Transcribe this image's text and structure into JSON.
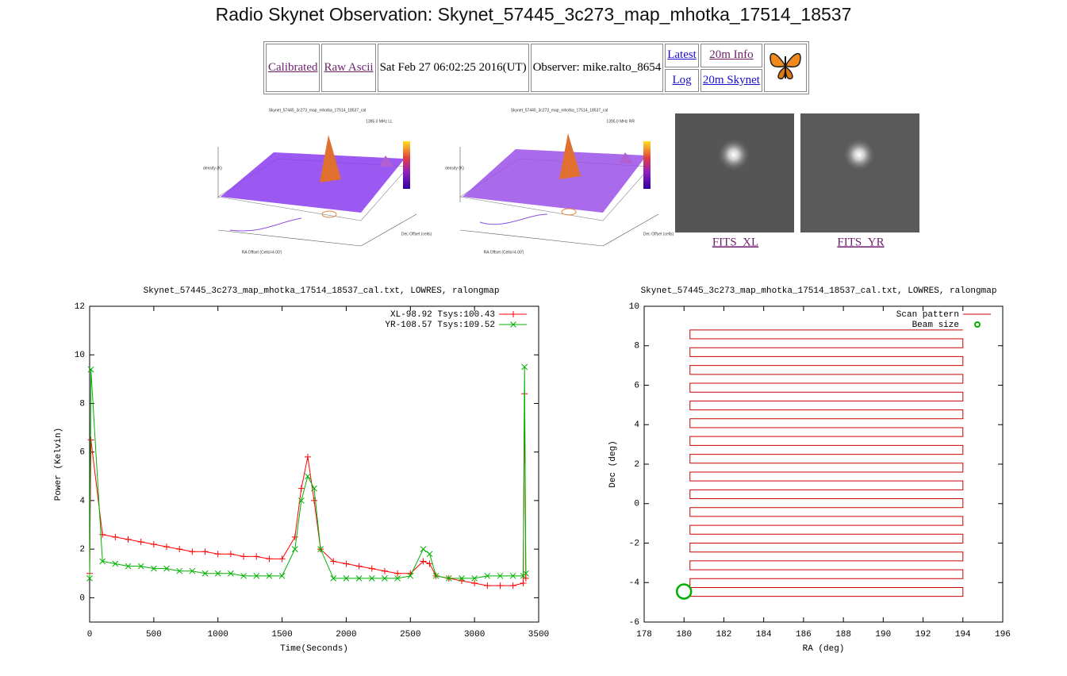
{
  "header": {
    "title": "Radio Skynet Observation: Skynet_57445_3c273_map_mhotka_17514_18537"
  },
  "table": {
    "calibrated": "Calibrated",
    "raw": "Raw Ascii",
    "date": "Sat Feb 27 06:02:25 2016(UT)",
    "observer": "Observer: mike.ralto_8654",
    "latest": "Latest",
    "log": "Log",
    "info": "20m Info",
    "skynet": "20m Skynet"
  },
  "images": {
    "plots": [
      {
        "title": "Skynet_57445_3c273_map_mhotka_17514_18537_cal",
        "legend": "1395.0 MHz LL",
        "zlabel": "density (K)",
        "xlabel": "RA Offset (Cells=4.00')",
        "ylabel": "Dec Offset (cells)"
      },
      {
        "title": "Skynet_57445_3c273_map_mhotka_17514_18537_cal",
        "legend": "1395.0 MHz RR",
        "zlabel": "density (K)",
        "xlabel": "RA Offset (Cells=4.00')",
        "ylabel": "Dec Offset (cells)"
      }
    ],
    "fits": [
      "FITS_XL",
      "FITS_YR"
    ]
  },
  "chart_data": [
    {
      "type": "line",
      "title": "Skynet_57445_3c273_map_mhotka_17514_18537_cal.txt, LOWRES, ralongmap",
      "xlabel": "Time(Seconds)",
      "ylabel": "Power (Kelvin)",
      "x": [
        0,
        10,
        100,
        200,
        300,
        400,
        500,
        600,
        700,
        800,
        900,
        1000,
        1100,
        1200,
        1300,
        1400,
        1500,
        1600,
        1650,
        1700,
        1750,
        1800,
        1900,
        2000,
        2100,
        2200,
        2300,
        2400,
        2500,
        2600,
        2650,
        2700,
        2800,
        2900,
        3000,
        3100,
        3200,
        3300,
        3380,
        3390,
        3400
      ],
      "series": [
        {
          "name": "XL-98.92 Tsys:100.43",
          "color": "#ff0000",
          "marker": "+",
          "style": "linespoints",
          "values": [
            1.0,
            6.5,
            2.6,
            2.5,
            2.4,
            2.3,
            2.2,
            2.1,
            2.0,
            1.9,
            1.9,
            1.8,
            1.8,
            1.7,
            1.7,
            1.6,
            1.6,
            2.5,
            4.5,
            5.8,
            4.0,
            2.0,
            1.5,
            1.4,
            1.3,
            1.2,
            1.1,
            1.0,
            1.0,
            1.5,
            1.4,
            0.9,
            0.8,
            0.7,
            0.6,
            0.5,
            0.5,
            0.5,
            0.6,
            8.4,
            0.8
          ]
        },
        {
          "name": "YR-108.57 Tsys:109.52",
          "color": "#00b000",
          "marker": "x",
          "style": "linespoints",
          "values": [
            0.8,
            9.4,
            1.5,
            1.4,
            1.3,
            1.3,
            1.2,
            1.2,
            1.1,
            1.1,
            1.0,
            1.0,
            1.0,
            0.9,
            0.9,
            0.9,
            0.9,
            2.0,
            4.0,
            5.0,
            4.5,
            2.0,
            0.8,
            0.8,
            0.8,
            0.8,
            0.8,
            0.8,
            0.9,
            2.0,
            1.8,
            0.9,
            0.8,
            0.8,
            0.8,
            0.9,
            0.9,
            0.9,
            0.9,
            9.5,
            1.0
          ]
        }
      ],
      "xlim": [
        0,
        3500
      ],
      "xticks": [
        0,
        500,
        1000,
        1500,
        2000,
        2500,
        3000,
        3500
      ],
      "ylim": [
        -1,
        12
      ],
      "yticks": [
        0,
        2,
        4,
        6,
        8,
        10,
        12
      ],
      "legend": "top-right"
    },
    {
      "type": "line",
      "title": "Skynet_57445_3c273_map_mhotka_17514_18537_cal.txt, LOWRES, ralongmap",
      "xlabel": "RA (deg)",
      "ylabel": "Dec (deg)",
      "series": [
        {
          "name": "Scan pattern",
          "color": "#cc0000",
          "marker": "none",
          "style": "lines",
          "x": [
            180.3,
            194,
            194,
            180.3,
            180.3,
            194,
            194,
            180.3,
            180.3,
            194,
            194,
            180.3,
            180.3,
            194,
            194,
            180.3,
            180.3,
            194,
            194,
            180.3,
            180.3,
            194,
            194,
            180.3,
            180.3,
            194,
            194,
            180.3,
            180.3,
            194,
            194,
            180.3,
            180.3,
            194,
            194,
            180.3,
            180.3,
            194,
            194,
            180.3,
            180.3,
            194,
            194,
            180.3,
            180.3,
            194,
            194,
            180.3,
            180.3,
            194,
            194,
            180.3,
            180.3,
            194,
            194,
            180.3,
            180.3,
            194,
            194,
            180.3,
            180.3,
            194
          ],
          "values": [
            -4.7,
            -4.7,
            -4.25,
            -4.25,
            -3.8,
            -3.8,
            -3.35,
            -3.35,
            -2.9,
            -2.9,
            -2.45,
            -2.45,
            -2.0,
            -2.0,
            -1.55,
            -1.55,
            -1.1,
            -1.1,
            -0.65,
            -0.65,
            -0.2,
            -0.2,
            0.25,
            0.25,
            0.7,
            0.7,
            1.15,
            1.15,
            1.6,
            1.6,
            2.05,
            2.05,
            2.5,
            2.5,
            2.95,
            2.95,
            3.4,
            3.4,
            3.85,
            3.85,
            4.3,
            4.3,
            4.75,
            4.75,
            5.2,
            5.2,
            5.65,
            5.65,
            6.1,
            6.1,
            6.55,
            6.55,
            7.0,
            7.0,
            7.45,
            7.45,
            7.9,
            7.9,
            8.35,
            8.35,
            8.8,
            8.8
          ]
        },
        {
          "name": "Beam size",
          "color": "#00b000",
          "marker": "circle",
          "style": "points",
          "x": [
            180.0
          ],
          "values": [
            -4.45
          ]
        }
      ],
      "xlim": [
        178,
        196
      ],
      "xticks": [
        178,
        180,
        182,
        184,
        186,
        188,
        190,
        192,
        194,
        196
      ],
      "ylim": [
        -6,
        10
      ],
      "yticks": [
        -6,
        -4,
        -2,
        0,
        2,
        4,
        6,
        8,
        10
      ],
      "legend": "top-right"
    }
  ]
}
